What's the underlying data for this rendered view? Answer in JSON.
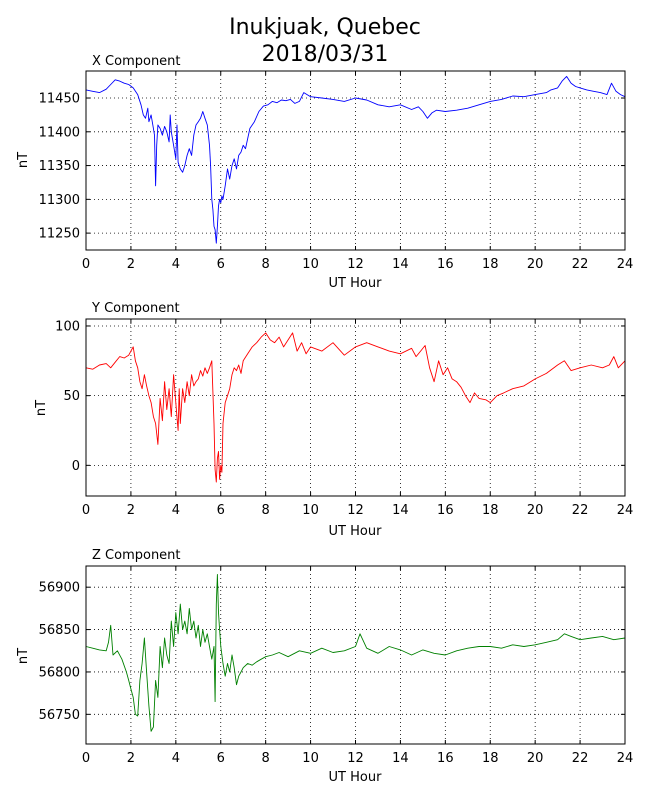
{
  "figure": {
    "title_line1": "Inukjuak, Quebec",
    "title_line2": "2018/03/31"
  },
  "chart_data": [
    {
      "type": "line",
      "title": "X Component",
      "xlabel": "UT Hour",
      "ylabel": "nT",
      "xlim": [
        0,
        24
      ],
      "ylim": [
        11225,
        11490
      ],
      "xticks": [
        0,
        2,
        4,
        6,
        8,
        10,
        12,
        14,
        16,
        18,
        20,
        22,
        24
      ],
      "yticks": [
        11250,
        11300,
        11350,
        11400,
        11450
      ],
      "grid": true,
      "color": "#0000ff",
      "series": [
        {
          "x": [
            0,
            0.3,
            0.6,
            0.9,
            1.1,
            1.3,
            1.5,
            1.7,
            1.9,
            2.1,
            2.3,
            2.45,
            2.55,
            2.65,
            2.75,
            2.8,
            2.9,
            3.0,
            3.05,
            3.1,
            3.15,
            3.2,
            3.3,
            3.4,
            3.5,
            3.6,
            3.7,
            3.75,
            3.8,
            3.9,
            4.0,
            4.05,
            4.1,
            4.2,
            4.3,
            4.4,
            4.5,
            4.6,
            4.7,
            4.8,
            4.9,
            5.0,
            5.1,
            5.2,
            5.3,
            5.4,
            5.5,
            5.55,
            5.6,
            5.65,
            5.7,
            5.75,
            5.8,
            5.85,
            5.9,
            5.95,
            6.0,
            6.05,
            6.1,
            6.2,
            6.3,
            6.4,
            6.5,
            6.6,
            6.7,
            6.8,
            6.9,
            7.0,
            7.1,
            7.2,
            7.3,
            7.5,
            7.7,
            7.9,
            8.1,
            8.3,
            8.5,
            8.7,
            8.9,
            9.1,
            9.3,
            9.5,
            9.7,
            10.0,
            10.5,
            11.0,
            11.5,
            12.0,
            12.5,
            13.0,
            13.5,
            14.0,
            14.5,
            14.8,
            15.0,
            15.2,
            15.4,
            15.6,
            16.0,
            16.5,
            17.0,
            17.5,
            18.0,
            18.5,
            19.0,
            19.5,
            20.0,
            20.5,
            20.7,
            21.0,
            21.2,
            21.4,
            21.6,
            21.8,
            22.0,
            22.3,
            22.6,
            22.9,
            23.2,
            23.4,
            23.6,
            23.8,
            24.0
          ],
          "y": [
            11462,
            11460,
            11458,
            11463,
            11470,
            11477,
            11475,
            11472,
            11470,
            11465,
            11455,
            11440,
            11425,
            11420,
            11435,
            11415,
            11425,
            11405,
            11395,
            11320,
            11380,
            11410,
            11405,
            11395,
            11408,
            11400,
            11385,
            11425,
            11400,
            11380,
            11360,
            11410,
            11355,
            11345,
            11340,
            11350,
            11365,
            11375,
            11365,
            11395,
            11410,
            11415,
            11420,
            11430,
            11420,
            11410,
            11380,
            11350,
            11300,
            11285,
            11260,
            11255,
            11235,
            11260,
            11290,
            11300,
            11295,
            11305,
            11300,
            11320,
            11345,
            11330,
            11350,
            11360,
            11345,
            11365,
            11370,
            11380,
            11375,
            11390,
            11405,
            11415,
            11430,
            11438,
            11440,
            11445,
            11443,
            11447,
            11446,
            11448,
            11442,
            11445,
            11458,
            11452,
            11450,
            11448,
            11445,
            11450,
            11447,
            11440,
            11437,
            11440,
            11433,
            11437,
            11430,
            11420,
            11428,
            11432,
            11430,
            11432,
            11435,
            11440,
            11445,
            11448,
            11453,
            11452,
            11455,
            11458,
            11462,
            11465,
            11475,
            11482,
            11472,
            11467,
            11465,
            11462,
            11460,
            11458,
            11455,
            11472,
            11460,
            11455,
            11452
          ]
        }
      ]
    },
    {
      "type": "line",
      "title": "Y Component",
      "xlabel": "UT Hour",
      "ylabel": "nT",
      "xlim": [
        0,
        24
      ],
      "ylim": [
        -22,
        105
      ],
      "xticks": [
        0,
        2,
        4,
        6,
        8,
        10,
        12,
        14,
        16,
        18,
        20,
        22,
        24
      ],
      "yticks": [
        0,
        50,
        100
      ],
      "grid": true,
      "color": "#ff0000",
      "series": [
        {
          "x": [
            0,
            0.3,
            0.6,
            0.9,
            1.1,
            1.3,
            1.5,
            1.7,
            1.9,
            2.0,
            2.1,
            2.2,
            2.3,
            2.4,
            2.5,
            2.6,
            2.7,
            2.8,
            2.9,
            3.0,
            3.1,
            3.2,
            3.3,
            3.4,
            3.5,
            3.6,
            3.7,
            3.8,
            3.9,
            4.0,
            4.1,
            4.15,
            4.2,
            4.3,
            4.4,
            4.5,
            4.6,
            4.7,
            4.8,
            4.9,
            5.0,
            5.1,
            5.2,
            5.3,
            5.4,
            5.5,
            5.6,
            5.7,
            5.75,
            5.8,
            5.85,
            5.9,
            5.95,
            6.0,
            6.05,
            6.1,
            6.2,
            6.3,
            6.4,
            6.5,
            6.6,
            6.7,
            6.8,
            6.9,
            7.0,
            7.2,
            7.4,
            7.6,
            7.8,
            8.0,
            8.2,
            8.4,
            8.6,
            8.8,
            9.0,
            9.2,
            9.4,
            9.6,
            9.8,
            10.0,
            10.5,
            11.0,
            11.5,
            12.0,
            12.5,
            13.0,
            13.5,
            14.0,
            14.5,
            14.7,
            14.9,
            15.1,
            15.3,
            15.5,
            15.7,
            15.9,
            16.1,
            16.3,
            16.5,
            16.7,
            16.9,
            17.1,
            17.3,
            17.5,
            17.8,
            18.0,
            18.3,
            18.6,
            19.0,
            19.5,
            20.0,
            20.5,
            21.0,
            21.3,
            21.6,
            22.0,
            22.5,
            23.0,
            23.3,
            23.5,
            23.7,
            24.0
          ],
          "y": [
            70,
            69,
            72,
            73,
            70,
            74,
            78,
            77,
            79,
            82,
            85,
            75,
            70,
            60,
            55,
            65,
            57,
            50,
            45,
            35,
            30,
            15,
            48,
            32,
            60,
            40,
            55,
            35,
            65,
            45,
            25,
            55,
            30,
            55,
            45,
            60,
            50,
            65,
            57,
            60,
            62,
            68,
            64,
            70,
            66,
            70,
            75,
            30,
            -3,
            -12,
            5,
            10,
            -10,
            0,
            -5,
            30,
            45,
            50,
            55,
            65,
            70,
            68,
            72,
            66,
            75,
            80,
            85,
            88,
            92,
            95,
            90,
            88,
            92,
            85,
            90,
            95,
            82,
            88,
            80,
            85,
            82,
            88,
            79,
            85,
            88,
            85,
            82,
            80,
            84,
            78,
            82,
            86,
            70,
            60,
            75,
            65,
            70,
            62,
            60,
            56,
            50,
            45,
            52,
            48,
            47,
            45,
            50,
            52,
            55,
            57,
            62,
            66,
            72,
            75,
            68,
            70,
            72,
            70,
            72,
            78,
            70,
            75
          ]
        }
      ]
    },
    {
      "type": "line",
      "title": "Z Component",
      "xlabel": "UT Hour",
      "ylabel": "nT",
      "xlim": [
        0,
        24
      ],
      "ylim": [
        56715,
        56925
      ],
      "xticks": [
        0,
        2,
        4,
        6,
        8,
        10,
        12,
        14,
        16,
        18,
        20,
        22,
        24
      ],
      "yticks": [
        56750,
        56800,
        56850,
        56900
      ],
      "grid": true,
      "color": "#008000",
      "series": [
        {
          "x": [
            0,
            0.3,
            0.6,
            0.9,
            1.0,
            1.1,
            1.2,
            1.4,
            1.6,
            1.8,
            1.9,
            2.0,
            2.1,
            2.2,
            2.3,
            2.4,
            2.5,
            2.6,
            2.7,
            2.8,
            2.9,
            3.0,
            3.1,
            3.2,
            3.3,
            3.4,
            3.5,
            3.6,
            3.7,
            3.8,
            3.9,
            4.0,
            4.1,
            4.2,
            4.3,
            4.4,
            4.5,
            4.6,
            4.7,
            4.8,
            4.9,
            5.0,
            5.1,
            5.2,
            5.3,
            5.4,
            5.5,
            5.6,
            5.7,
            5.75,
            5.8,
            5.85,
            5.9,
            5.95,
            6.0,
            6.1,
            6.2,
            6.3,
            6.4,
            6.5,
            6.6,
            6.7,
            6.8,
            6.9,
            7.0,
            7.2,
            7.4,
            7.6,
            7.8,
            8.0,
            8.3,
            8.6,
            9.0,
            9.5,
            10.0,
            10.5,
            11.0,
            11.5,
            12.0,
            12.2,
            12.5,
            13.0,
            13.5,
            14.0,
            14.5,
            15.0,
            15.5,
            16.0,
            16.5,
            17.0,
            17.5,
            18.0,
            18.5,
            19.0,
            19.5,
            20.0,
            20.5,
            21.0,
            21.3,
            21.6,
            22.0,
            22.5,
            23.0,
            23.5,
            24.0
          ],
          "y": [
            56830,
            56828,
            56826,
            56825,
            56835,
            56855,
            56820,
            56825,
            56815,
            56800,
            56790,
            56780,
            56770,
            56750,
            56748,
            56790,
            56810,
            56840,
            56800,
            56760,
            56730,
            56735,
            56790,
            56770,
            56830,
            56805,
            56840,
            56820,
            56810,
            56860,
            56830,
            56870,
            56845,
            56880,
            56850,
            56860,
            56845,
            56875,
            56850,
            56860,
            56840,
            56855,
            56830,
            56850,
            56835,
            56845,
            56830,
            56815,
            56830,
            56765,
            56880,
            56915,
            56870,
            56850,
            56830,
            56810,
            56795,
            56810,
            56800,
            56820,
            56805,
            56785,
            56795,
            56800,
            56805,
            56810,
            56808,
            56812,
            56815,
            56818,
            56820,
            56823,
            56818,
            56825,
            56822,
            56828,
            56823,
            56825,
            56830,
            56845,
            56828,
            56822,
            56830,
            56826,
            56820,
            56826,
            56822,
            56820,
            56825,
            56828,
            56830,
            56830,
            56828,
            56832,
            56830,
            56832,
            56835,
            56838,
            56845,
            56842,
            56838,
            56840,
            56842,
            56838,
            56840
          ]
        }
      ]
    }
  ]
}
